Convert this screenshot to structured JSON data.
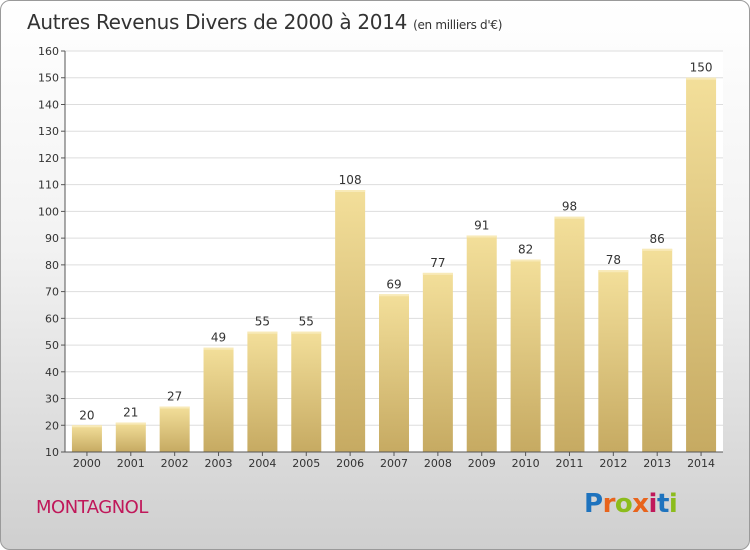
{
  "header": {
    "title": "Autres Revenus Divers de 2000 à 2014",
    "subtitle": "(en milliers d'€)"
  },
  "footer": {
    "place": "MONTAGNOL",
    "logo_text": "Proxiti",
    "logo_colors": [
      "#1e73be",
      "#e8641c",
      "#8cbc1c",
      "#e8641c",
      "#c0185a",
      "#1e73be",
      "#8cbc1c"
    ]
  },
  "colors": {
    "bar_light": "#f3df9a",
    "bar_dark": "#c6aa62",
    "gridline": "#dddddd",
    "axis": "#555555"
  },
  "chart_data": {
    "type": "bar",
    "title": "Autres Revenus Divers de 2000 à 2014",
    "subtitle": "(en milliers d'€)",
    "categories": [
      "2000",
      "2001",
      "2002",
      "2003",
      "2004",
      "2005",
      "2006",
      "2007",
      "2008",
      "2009",
      "2010",
      "2011",
      "2012",
      "2013",
      "2014"
    ],
    "values": [
      20,
      21,
      27,
      49,
      55,
      55,
      108,
      69,
      77,
      91,
      82,
      98,
      78,
      86,
      150
    ],
    "ylim": [
      10,
      160
    ],
    "yticks": [
      10,
      20,
      30,
      40,
      50,
      60,
      70,
      80,
      90,
      100,
      110,
      120,
      130,
      140,
      150,
      160
    ],
    "xlabel": "",
    "ylabel": "",
    "grid": true,
    "data_labels": true
  }
}
